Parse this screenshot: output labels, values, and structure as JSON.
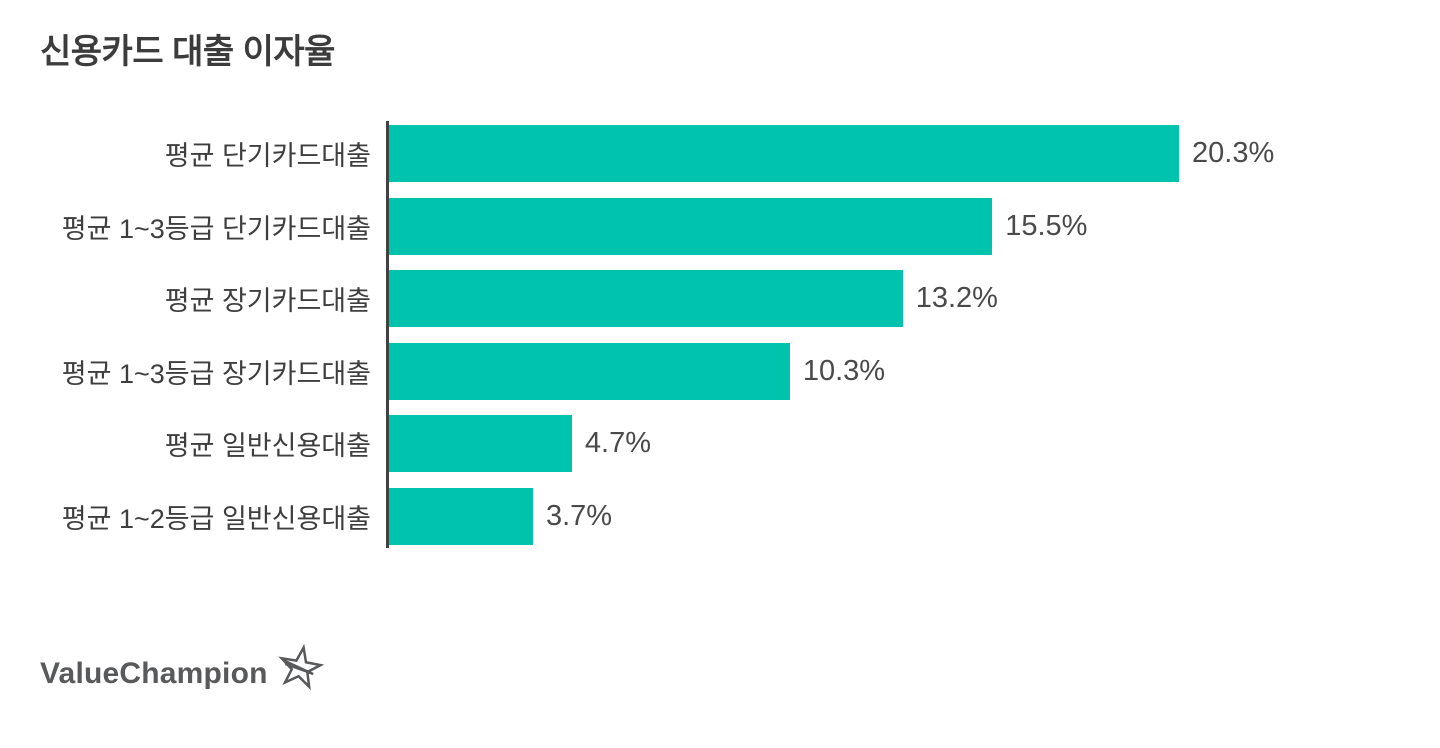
{
  "title": "신용카드 대출 이자율",
  "chart_data": {
    "type": "bar",
    "orientation": "horizontal",
    "categories": [
      "평균 단기카드대출",
      "평균 1~3등급 단기카드대출",
      "평균 장기카드대출",
      "평균 1~3등급 장기카드대출",
      "평균 일반신용대출",
      "평균 1~2등급 일반신용대출"
    ],
    "values": [
      20.3,
      15.5,
      13.2,
      10.3,
      4.7,
      3.7
    ],
    "value_labels": [
      "20.3%",
      "15.5%",
      "13.2%",
      "10.3%",
      "4.7%",
      "3.7%"
    ],
    "xlim": [
      0,
      20.3
    ],
    "grid": "off",
    "legend": "none",
    "bar_color": "#00c3ad",
    "axis_color": "#414141",
    "label_color": "#3e3e3e",
    "value_color": "#4a4a4a"
  },
  "branding": {
    "logo_text": "ValueChampion",
    "logo_color": "#58595b",
    "star_icon": "star-outline-icon"
  }
}
